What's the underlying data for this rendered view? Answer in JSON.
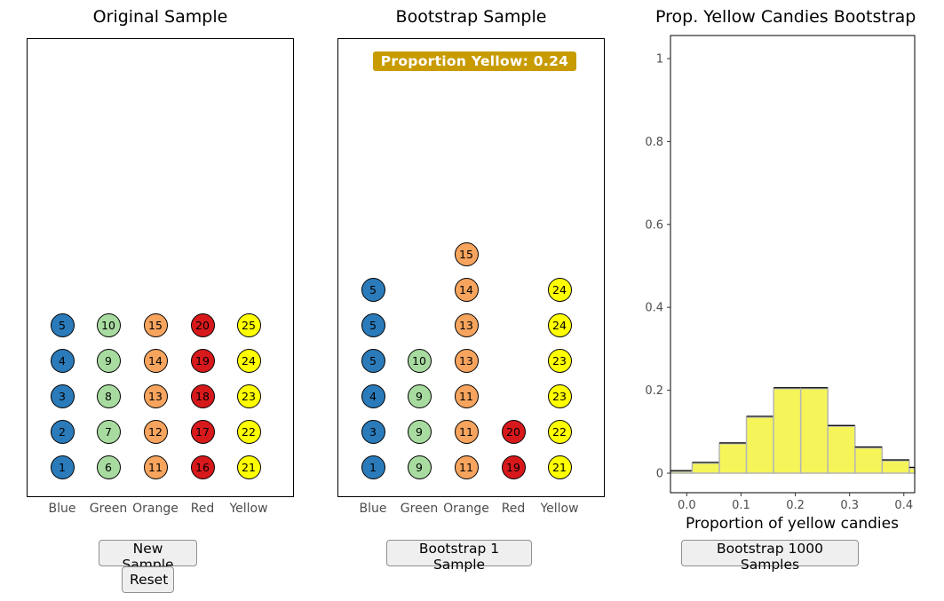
{
  "panels": {
    "original": {
      "title": "Original Sample"
    },
    "bootstrap": {
      "title": "Bootstrap Sample",
      "badge": "Proportion Yellow: 0.24"
    },
    "histogram": {
      "title": "Prop. Yellow Candies Bootstrap"
    }
  },
  "categories": [
    "Blue",
    "Green",
    "Orange",
    "Red",
    "Yellow"
  ],
  "colors": {
    "Blue": "#2b7bba",
    "Green": "#a8dba0",
    "Orange": "#f6a45e",
    "Red": "#d7191c",
    "Yellow": "#ffff00"
  },
  "original_sample": [
    {
      "category": "Blue",
      "ids": [
        "1",
        "2",
        "3",
        "4",
        "5"
      ]
    },
    {
      "category": "Green",
      "ids": [
        "6",
        "7",
        "8",
        "9",
        "10"
      ]
    },
    {
      "category": "Orange",
      "ids": [
        "11",
        "12",
        "13",
        "14",
        "15"
      ]
    },
    {
      "category": "Red",
      "ids": [
        "16",
        "17",
        "18",
        "19",
        "20"
      ]
    },
    {
      "category": "Yellow",
      "ids": [
        "21",
        "22",
        "23",
        "24",
        "25"
      ]
    }
  ],
  "bootstrap_sample": [
    {
      "category": "Blue",
      "ids": [
        "1",
        "3",
        "4",
        "5",
        "5",
        "5"
      ]
    },
    {
      "category": "Green",
      "ids": [
        "9",
        "9",
        "9",
        "10"
      ]
    },
    {
      "category": "Orange",
      "ids": [
        "11",
        "11",
        "11",
        "13",
        "13",
        "14",
        "15"
      ]
    },
    {
      "category": "Red",
      "ids": [
        "19",
        "20"
      ]
    },
    {
      "category": "Yellow",
      "ids": [
        "21",
        "22",
        "23",
        "23",
        "24",
        "24"
      ]
    }
  ],
  "buttons": {
    "new_sample": "New Sample",
    "reset": "Reset",
    "bootstrap_one": "Bootstrap 1 Sample",
    "bootstrap_thousand": "Bootstrap 1000 Samples"
  },
  "chart_data": {
    "type": "bar",
    "xlabel": "Proportion of yellow candies",
    "ylabel": "",
    "xlim": [
      -0.03,
      0.42
    ],
    "ylim": [
      0,
      1
    ],
    "xticks": [
      "0.0",
      "0.1",
      "0.2",
      "0.3",
      "0.4"
    ],
    "xtick_values": [
      0,
      0.1,
      0.2,
      0.3,
      0.4
    ],
    "yticks": [
      "0",
      "0.2",
      "0.4",
      "0.6",
      "0.8",
      "1"
    ],
    "ytick_values": [
      0,
      0.2,
      0.4,
      0.6,
      0.8,
      1
    ],
    "bin_width": 0.05,
    "bins": [
      {
        "x0": -0.04,
        "value": 0.004
      },
      {
        "x0": 0.01,
        "value": 0.024
      },
      {
        "x0": 0.06,
        "value": 0.071
      },
      {
        "x0": 0.11,
        "value": 0.135
      },
      {
        "x0": 0.16,
        "value": 0.204
      },
      {
        "x0": 0.21,
        "value": 0.204
      },
      {
        "x0": 0.26,
        "value": 0.113
      },
      {
        "x0": 0.31,
        "value": 0.061
      },
      {
        "x0": 0.36,
        "value": 0.03
      },
      {
        "x0": 0.41,
        "value": 0.012
      }
    ],
    "fill_color": "#f5f55a",
    "grid": false
  }
}
